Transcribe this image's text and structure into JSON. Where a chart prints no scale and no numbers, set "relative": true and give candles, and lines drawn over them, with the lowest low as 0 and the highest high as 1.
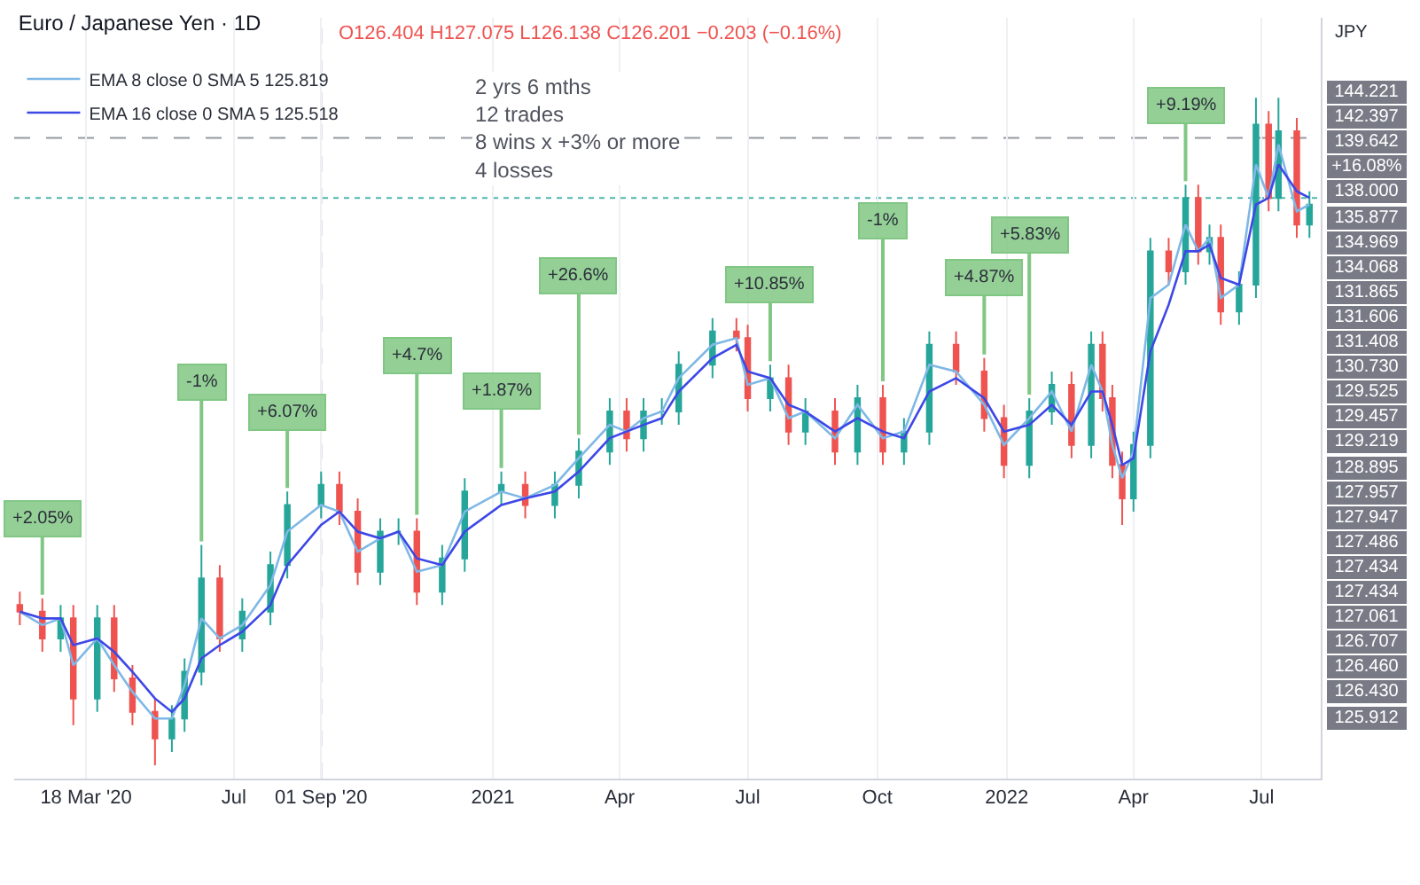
{
  "chart_data": {
    "type": "candlestick",
    "title": "Euro / Japanese Yen · 1D",
    "subtitle": "O126.404 H127.075 L126.138 C126.201 −0.203 (−0.16%)",
    "ylabel": "JPY",
    "relative": true,
    "x": [
      "2020-01-31",
      "2020-02-16",
      "2020-02-29",
      "2020-03-09",
      "2020-03-26",
      "2020-04-07",
      "2020-04-20",
      "2020-05-06",
      "2020-05-18",
      "2020-05-27",
      "2020-06-08",
      "2020-06-21",
      "2020-07-07",
      "2020-07-27",
      "2020-08-08",
      "2020-09-01",
      "2020-09-14",
      "2020-09-27",
      "2020-10-13",
      "2020-10-26",
      "2020-11-08",
      "2020-11-26",
      "2020-12-12",
      "2021-01-07",
      "2021-01-24",
      "2021-02-14",
      "2021-03-03",
      "2021-03-25",
      "2021-04-06",
      "2021-04-18",
      "2021-05-01",
      "2021-05-13",
      "2021-06-06",
      "2021-06-23",
      "2021-07-01",
      "2021-07-17",
      "2021-07-30",
      "2021-08-11",
      "2021-09-01",
      "2021-09-17",
      "2021-10-05",
      "2021-10-20",
      "2021-11-07",
      "2021-11-26",
      "2021-12-16",
      "2021-12-30",
      "2022-01-17",
      "2022-02-02",
      "2022-02-16",
      "2022-03-02",
      "2022-03-10",
      "2022-03-17",
      "2022-03-24",
      "2022-04-01",
      "2022-04-13",
      "2022-04-26",
      "2022-05-08",
      "2022-05-17",
      "2022-05-25",
      "2022-06-02",
      "2022-06-15",
      "2022-06-27",
      "2022-07-06",
      "2022-07-13",
      "2022-07-26",
      "2022-08-04"
    ],
    "ohlc": [
      [
        0.24,
        0.26,
        0.21,
        0.23
      ],
      [
        0.23,
        0.25,
        0.17,
        0.19
      ],
      [
        0.19,
        0.24,
        0.17,
        0.22
      ],
      [
        0.22,
        0.24,
        0.06,
        0.1
      ],
      [
        0.1,
        0.24,
        0.08,
        0.22
      ],
      [
        0.22,
        0.24,
        0.11,
        0.13
      ],
      [
        0.13,
        0.15,
        0.06,
        0.08
      ],
      [
        0.08,
        0.1,
        0.0,
        0.04
      ],
      [
        0.04,
        0.09,
        0.02,
        0.07
      ],
      [
        0.07,
        0.16,
        0.05,
        0.14
      ],
      [
        0.14,
        0.33,
        0.12,
        0.28
      ],
      [
        0.28,
        0.3,
        0.17,
        0.19
      ],
      [
        0.19,
        0.25,
        0.17,
        0.23
      ],
      [
        0.23,
        0.32,
        0.21,
        0.3
      ],
      [
        0.3,
        0.41,
        0.28,
        0.39
      ],
      [
        0.39,
        0.44,
        0.37,
        0.42
      ],
      [
        0.42,
        0.44,
        0.36,
        0.38
      ],
      [
        0.38,
        0.4,
        0.27,
        0.29
      ],
      [
        0.29,
        0.37,
        0.27,
        0.35
      ],
      [
        0.35,
        0.37,
        0.33,
        0.35
      ],
      [
        0.35,
        0.37,
        0.24,
        0.26
      ],
      [
        0.26,
        0.33,
        0.24,
        0.31
      ],
      [
        0.31,
        0.43,
        0.29,
        0.41
      ],
      [
        0.41,
        0.44,
        0.39,
        0.42
      ],
      [
        0.42,
        0.44,
        0.37,
        0.39
      ],
      [
        0.39,
        0.44,
        0.37,
        0.42
      ],
      [
        0.42,
        0.49,
        0.4,
        0.47
      ],
      [
        0.47,
        0.55,
        0.45,
        0.53
      ],
      [
        0.53,
        0.55,
        0.47,
        0.49
      ],
      [
        0.49,
        0.55,
        0.47,
        0.53
      ],
      [
        0.53,
        0.55,
        0.51,
        0.53
      ],
      [
        0.53,
        0.62,
        0.51,
        0.6
      ],
      [
        0.6,
        0.67,
        0.58,
        0.65
      ],
      [
        0.65,
        0.67,
        0.62,
        0.64
      ],
      [
        0.64,
        0.66,
        0.53,
        0.55
      ],
      [
        0.55,
        0.6,
        0.53,
        0.58
      ],
      [
        0.58,
        0.6,
        0.48,
        0.5
      ],
      [
        0.5,
        0.55,
        0.48,
        0.53
      ],
      [
        0.53,
        0.55,
        0.45,
        0.47
      ],
      [
        0.47,
        0.57,
        0.45,
        0.55
      ],
      [
        0.55,
        0.57,
        0.45,
        0.47
      ],
      [
        0.47,
        0.52,
        0.45,
        0.5
      ],
      [
        0.5,
        0.65,
        0.48,
        0.63
      ],
      [
        0.63,
        0.65,
        0.57,
        0.59
      ],
      [
        0.59,
        0.61,
        0.5,
        0.52
      ],
      [
        0.52,
        0.54,
        0.43,
        0.45
      ],
      [
        0.45,
        0.55,
        0.43,
        0.53
      ],
      [
        0.53,
        0.59,
        0.51,
        0.57
      ],
      [
        0.57,
        0.59,
        0.46,
        0.48
      ],
      [
        0.48,
        0.65,
        0.46,
        0.63
      ],
      [
        0.63,
        0.65,
        0.53,
        0.55
      ],
      [
        0.55,
        0.57,
        0.43,
        0.45
      ],
      [
        0.45,
        0.47,
        0.36,
        0.4
      ],
      [
        0.4,
        0.5,
        0.38,
        0.48
      ],
      [
        0.48,
        0.79,
        0.46,
        0.77
      ],
      [
        0.77,
        0.79,
        0.72,
        0.74
      ],
      [
        0.74,
        0.87,
        0.72,
        0.85
      ],
      [
        0.85,
        0.87,
        0.75,
        0.77
      ],
      [
        0.77,
        0.81,
        0.75,
        0.79
      ],
      [
        0.79,
        0.81,
        0.66,
        0.68
      ],
      [
        0.68,
        0.74,
        0.66,
        0.72
      ],
      [
        0.72,
        1.0,
        0.7,
        0.96
      ],
      [
        0.96,
        0.98,
        0.83,
        0.85
      ],
      [
        0.85,
        1.0,
        0.83,
        0.95
      ],
      [
        0.95,
        0.97,
        0.79,
        0.81
      ],
      [
        0.81,
        0.86,
        0.79,
        0.84
      ]
    ],
    "series": [
      {
        "name": "EMA 8 close 0 SMA 5 125.819",
        "type": "line",
        "color": "#7fb8e6",
        "values": [
          0.23,
          0.21,
          0.22,
          0.15,
          0.19,
          0.15,
          0.11,
          0.07,
          0.07,
          0.12,
          0.22,
          0.19,
          0.21,
          0.27,
          0.35,
          0.39,
          0.38,
          0.32,
          0.34,
          0.35,
          0.29,
          0.3,
          0.38,
          0.41,
          0.4,
          0.42,
          0.46,
          0.51,
          0.5,
          0.52,
          0.53,
          0.58,
          0.63,
          0.64,
          0.57,
          0.58,
          0.52,
          0.53,
          0.49,
          0.54,
          0.49,
          0.5,
          0.6,
          0.59,
          0.54,
          0.48,
          0.52,
          0.56,
          0.5,
          0.6,
          0.56,
          0.48,
          0.43,
          0.47,
          0.7,
          0.72,
          0.81,
          0.77,
          0.79,
          0.7,
          0.72,
          0.9,
          0.85,
          0.93,
          0.83,
          0.84
        ]
      },
      {
        "name": "EMA 16 close 0 SMA 5 125.518",
        "type": "line",
        "color": "#3d47e6",
        "values": [
          0.23,
          0.22,
          0.22,
          0.18,
          0.19,
          0.17,
          0.14,
          0.1,
          0.08,
          0.1,
          0.16,
          0.18,
          0.2,
          0.24,
          0.3,
          0.36,
          0.38,
          0.35,
          0.34,
          0.35,
          0.31,
          0.3,
          0.35,
          0.39,
          0.4,
          0.41,
          0.44,
          0.49,
          0.5,
          0.51,
          0.52,
          0.56,
          0.61,
          0.63,
          0.59,
          0.58,
          0.54,
          0.53,
          0.5,
          0.52,
          0.5,
          0.49,
          0.56,
          0.58,
          0.55,
          0.5,
          0.51,
          0.54,
          0.51,
          0.56,
          0.56,
          0.51,
          0.45,
          0.46,
          0.62,
          0.69,
          0.77,
          0.77,
          0.78,
          0.73,
          0.72,
          0.84,
          0.85,
          0.9,
          0.86,
          0.85
        ]
      }
    ],
    "xlim": [
      "2020-01-27",
      "2022-08-12"
    ],
    "xticks": [
      {
        "value": "2020-03-18",
        "label": "18 Mar '20"
      },
      {
        "value": "2020-07-01",
        "label": "Jul"
      },
      {
        "value": "2020-09-01",
        "label": "01 Sep '20"
      },
      {
        "value": "2021-01-01",
        "label": "2021"
      },
      {
        "value": "2021-04-01",
        "label": "Apr"
      },
      {
        "value": "2021-07-01",
        "label": "Jul"
      },
      {
        "value": "2021-10-01",
        "label": "Oct"
      },
      {
        "value": "2022-01-01",
        "label": "2022"
      },
      {
        "value": "2022-04-01",
        "label": "Apr"
      },
      {
        "value": "2022-07-01",
        "label": "Jul"
      }
    ],
    "grid": "x",
    "legend": "top left",
    "ref_lines": [
      {
        "axis": "x",
        "value": "2020-09-01",
        "line_style": "dashed",
        "color": "#9598a1"
      },
      {
        "axis": "y",
        "value": 0.94,
        "line_style": "dashed",
        "color": "#9598a1"
      },
      {
        "axis": "y",
        "value": 0.85,
        "line_style": "dotted",
        "color": "#4db6ac"
      }
    ],
    "annotations": [
      "2 yrs 6 mths\n12 trades\n8 wins x +3% or more\n4 losses",
      {
        "text": "+2.05%",
        "x": "2020-02-16",
        "y": 0.25
      },
      {
        "text": "-1%",
        "x": "2020-06-08",
        "y": 0.33
      },
      {
        "text": "+6.07%",
        "x": "2020-08-08",
        "y": 0.41
      },
      {
        "text": "+4.7%",
        "x": "2020-11-08",
        "y": 0.37
      },
      {
        "text": "+1.87%",
        "x": "2021-01-07",
        "y": 0.44
      },
      {
        "text": "+26.6%",
        "x": "2021-03-03",
        "y": 0.49
      },
      {
        "text": "+10.85%",
        "x": "2021-07-17",
        "y": 0.6
      },
      {
        "text": "-1%",
        "x": "2021-10-05",
        "y": 0.57
      },
      {
        "text": "+4.87%",
        "x": "2021-12-16",
        "y": 0.61
      },
      {
        "text": "+5.83%",
        "x": "2022-01-17",
        "y": 0.55
      },
      {
        "text": "+9.19%",
        "x": "2022-05-08",
        "y": 0.87
      },
      "144.221",
      "142.397",
      "139.642",
      "+16.08%",
      "138.000",
      "135.877",
      "134.969",
      "134.068",
      "131.865",
      "131.606",
      "131.408",
      "130.730",
      "129.525",
      "129.457",
      "129.219",
      "128.895",
      "127.957",
      "127.947",
      "127.486",
      "127.434",
      "127.434",
      "127.061",
      "126.707",
      "126.460",
      "126.430",
      "125.912"
    ]
  }
}
